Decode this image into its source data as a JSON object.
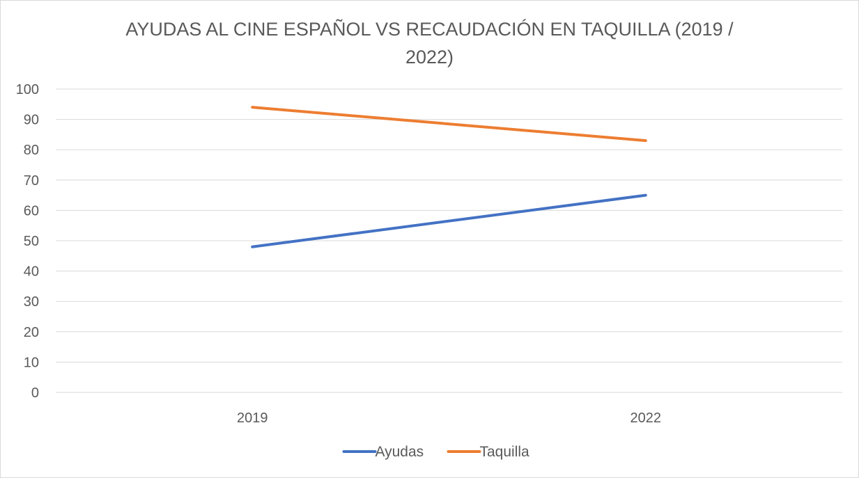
{
  "chart_data": {
    "type": "line",
    "title_lines": [
      "AYUDAS AL CINE ESPAÑOL VS RECAUDACIÓN EN TAQUILLA (2019 /",
      "2022)"
    ],
    "categories": [
      "2019",
      "2022"
    ],
    "series": [
      {
        "name": "Ayudas",
        "values": [
          48,
          65
        ],
        "color": "#4472c4"
      },
      {
        "name": "Taquilla",
        "values": [
          94,
          83
        ],
        "color": "#ed7d31"
      }
    ],
    "ylim": [
      0,
      100
    ],
    "yticks": [
      "0",
      "10",
      "20",
      "30",
      "40",
      "50",
      "60",
      "70",
      "80",
      "90",
      "100"
    ],
    "grid": true,
    "gridline_color": "#d9d9d9",
    "xlabel": "",
    "ylabel": "",
    "legend_position": "bottom"
  }
}
